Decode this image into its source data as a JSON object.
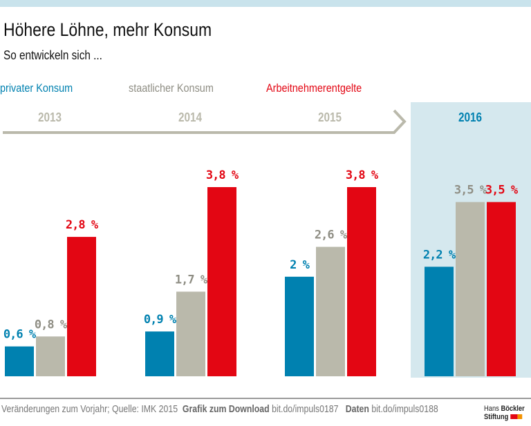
{
  "title": "Höhere Löhne, mehr Konsum",
  "subtitle": "So entwickeln sich ...",
  "colors": {
    "privat": "#0081b0",
    "staat": "#bab9ab",
    "arbeit": "#e30613",
    "highlight": "#d5e8ee"
  },
  "chart_data": {
    "type": "bar",
    "categories": [
      "2013",
      "2014",
      "2015",
      "2016"
    ],
    "series": [
      {
        "name": "privater  Konsum",
        "values": [
          0.6,
          0.9,
          2,
          2.2
        ],
        "labels": [
          "0,6 %",
          "0,9 %",
          "2 %",
          "2,2 %"
        ]
      },
      {
        "name": "staatlicher Konsum",
        "values": [
          0.8,
          1.7,
          2.6,
          3.5
        ],
        "labels": [
          "0,8 %",
          "1,7 %",
          "2,6 %",
          "3,5 %"
        ]
      },
      {
        "name": "Arbeitnehmerentgelte",
        "values": [
          2.8,
          3.8,
          3.8,
          3.5
        ],
        "labels": [
          "2,8 %",
          "3,8 %",
          "3,8 %",
          "3,5 %"
        ]
      }
    ],
    "unit": "%",
    "highlighted_category": "2016",
    "ylim": [
      0,
      3.8
    ]
  },
  "footer": {
    "source": "Veränderungen zum Vorjahr; Quelle: IMK 2015",
    "grafik_label": "Grafik zum Download",
    "grafik_link": "bit.do/impuls0187",
    "daten_label": "Daten",
    "daten_link": "bit.do/impuls0188"
  },
  "logo": {
    "line1a": "Hans ",
    "line1b": "Böckler",
    "line2": "Stiftung"
  }
}
